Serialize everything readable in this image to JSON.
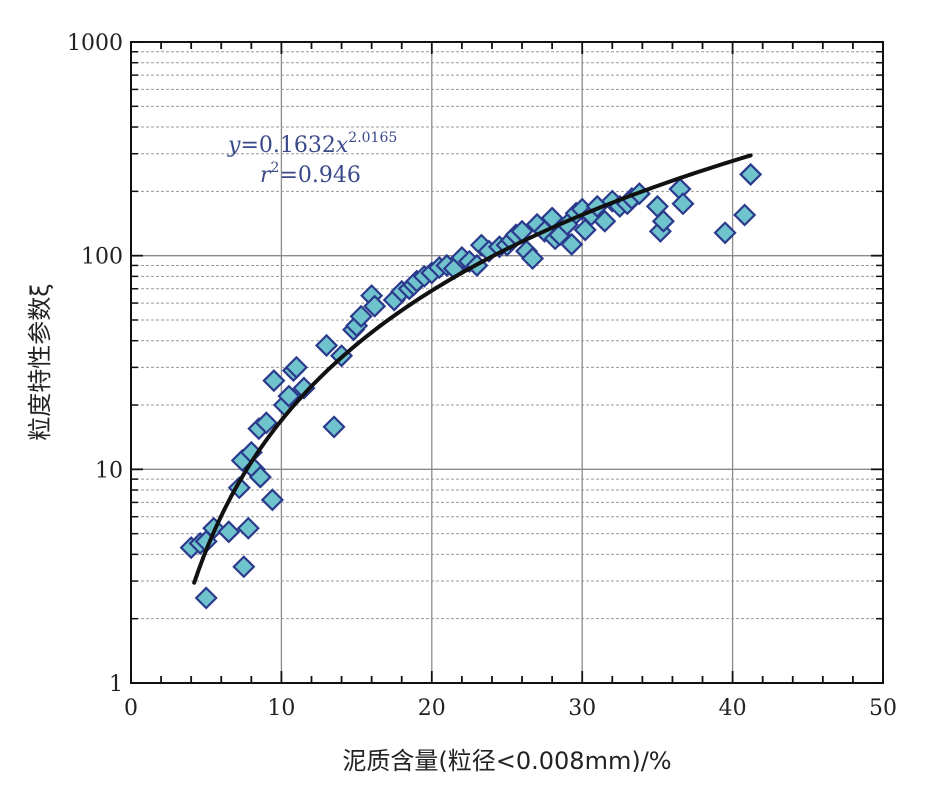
{
  "chart_data": {
    "type": "scatter",
    "xlabel": "泥质含量(粒径<0.008mm)/%",
    "ylabel": "粒度特性参数ξ",
    "xlim": [
      0,
      50
    ],
    "ylim": [
      1,
      1000
    ],
    "y_scale": "log",
    "x_ticks": [
      "0",
      "10",
      "20",
      "30",
      "40",
      "50"
    ],
    "y_ticks": [
      "1",
      "10",
      "100",
      "1000"
    ],
    "grid": true,
    "marker": "diamond",
    "colors": {
      "marker_fill": "#6fc3cc",
      "marker_edge": "#2b3a8c",
      "fit_line": "#111111",
      "equation": "#3a4a8a"
    },
    "fit": {
      "a": 0.1632,
      "b": 2.0165,
      "x_range": [
        4.2,
        41.2
      ],
      "equation_a": "0.1632",
      "equation_b": "2.0165",
      "r2": "0.946"
    },
    "points": [
      [
        4,
        4.3
      ],
      [
        4.6,
        4.5
      ],
      [
        5,
        4.6
      ],
      [
        5,
        2.5
      ],
      [
        5.5,
        5.3
      ],
      [
        6.5,
        5.1
      ],
      [
        7.2,
        8.2
      ],
      [
        7.4,
        11
      ],
      [
        7.5,
        3.5
      ],
      [
        7.8,
        5.3
      ],
      [
        8,
        12
      ],
      [
        8.2,
        10
      ],
      [
        8.5,
        15.5
      ],
      [
        8.6,
        9.2
      ],
      [
        9,
        16.5
      ],
      [
        9.4,
        7.2
      ],
      [
        9.5,
        26
      ],
      [
        10.2,
        20
      ],
      [
        10.5,
        22
      ],
      [
        10.8,
        29
      ],
      [
        11,
        30
      ],
      [
        11.5,
        24
      ],
      [
        13,
        38
      ],
      [
        13.5,
        15.8
      ],
      [
        14,
        34
      ],
      [
        14.8,
        45
      ],
      [
        15,
        47
      ],
      [
        15.3,
        52
      ],
      [
        16,
        65
      ],
      [
        16.2,
        58
      ],
      [
        17.5,
        62
      ],
      [
        18,
        68
      ],
      [
        18.5,
        70
      ],
      [
        18.8,
        73
      ],
      [
        19,
        76
      ],
      [
        19.5,
        80
      ],
      [
        20,
        83
      ],
      [
        20.5,
        88
      ],
      [
        21,
        90
      ],
      [
        21.5,
        87
      ],
      [
        22,
        98
      ],
      [
        22.5,
        94
      ],
      [
        23,
        90
      ],
      [
        23.3,
        112
      ],
      [
        23.8,
        105
      ],
      [
        24.5,
        110
      ],
      [
        25,
        112
      ],
      [
        25.3,
        118
      ],
      [
        25.6,
        125
      ],
      [
        26,
        130
      ],
      [
        26.3,
        105
      ],
      [
        26.7,
        97
      ],
      [
        27,
        140
      ],
      [
        27.5,
        130
      ],
      [
        28,
        150
      ],
      [
        28.2,
        120
      ],
      [
        28.5,
        125
      ],
      [
        29,
        140
      ],
      [
        29.3,
        113
      ],
      [
        29.6,
        158
      ],
      [
        30,
        165
      ],
      [
        30.2,
        132
      ],
      [
        30.6,
        155
      ],
      [
        31,
        170
      ],
      [
        31.5,
        145
      ],
      [
        32,
        180
      ],
      [
        32.5,
        170
      ],
      [
        33,
        175
      ],
      [
        33.3,
        185
      ],
      [
        33.8,
        195
      ],
      [
        35,
        170
      ],
      [
        35.2,
        130
      ],
      [
        35.4,
        145
      ],
      [
        36.5,
        205
      ],
      [
        36.7,
        175
      ],
      [
        39.5,
        128
      ],
      [
        40.8,
        155
      ],
      [
        41.2,
        240
      ]
    ]
  }
}
